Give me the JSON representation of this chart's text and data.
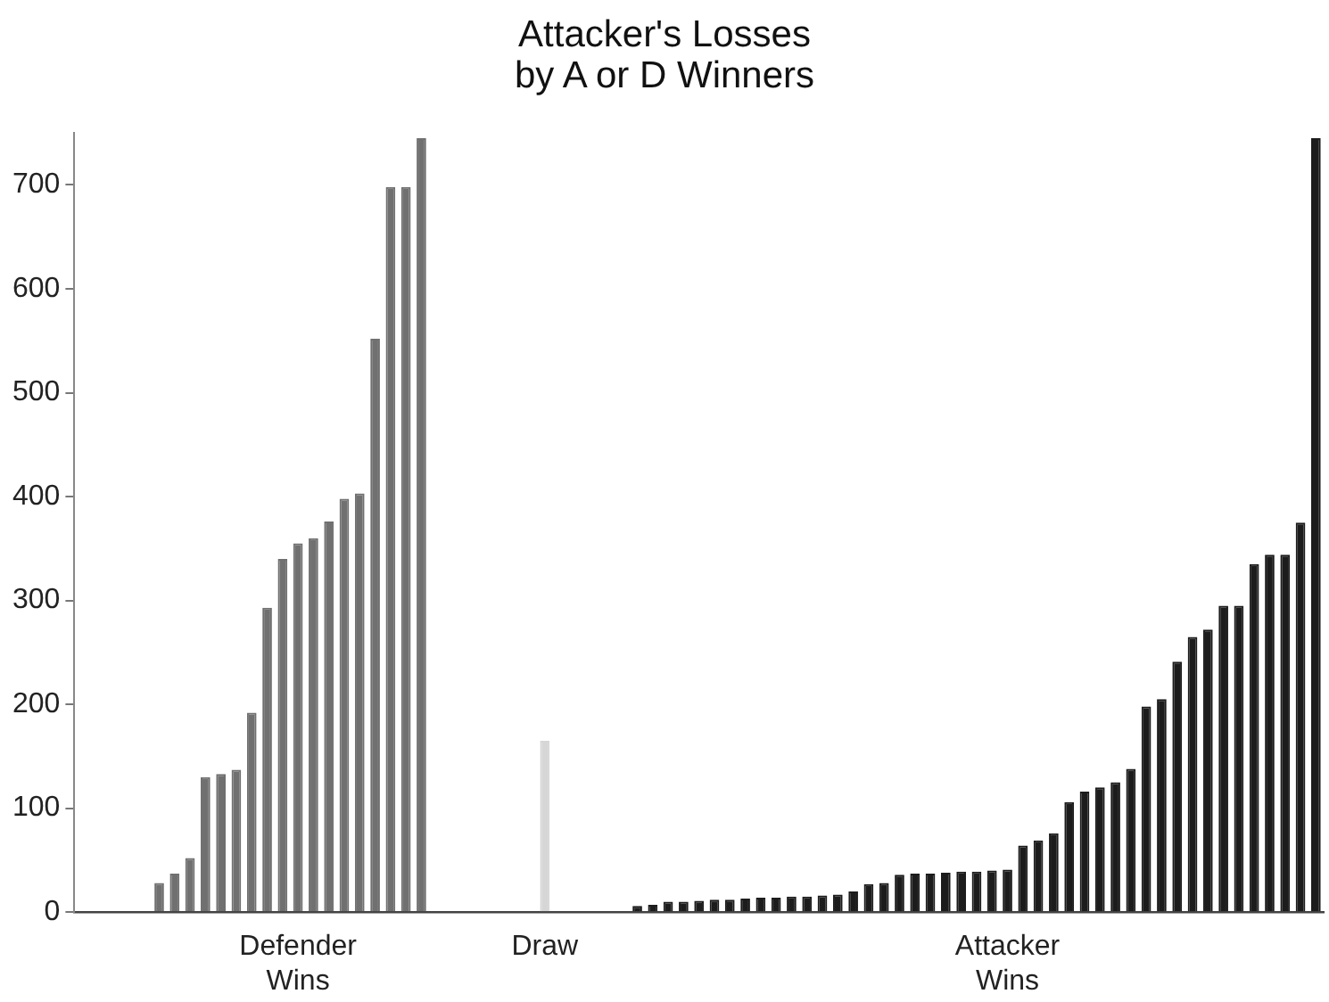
{
  "chart_data": {
    "type": "bar",
    "title": "Attacker's Losses\nby A or D Winners",
    "categories": [
      null,
      null,
      null,
      null,
      null,
      null,
      null,
      null,
      null,
      null,
      null,
      null,
      null,
      null,
      "Defender Wins",
      null,
      null,
      null,
      null,
      null,
      null,
      null,
      null,
      null,
      null,
      null,
      null,
      null,
      null,
      null,
      "Draw",
      null,
      null,
      null,
      null,
      null,
      null,
      null,
      null,
      null,
      null,
      null,
      null,
      null,
      null,
      null,
      null,
      null,
      null,
      null,
      null,
      null,
      null,
      null,
      null,
      null,
      null,
      null,
      null,
      null,
      "Attacker Wins",
      null,
      null,
      null,
      null,
      null,
      null,
      null,
      null,
      null,
      null,
      null,
      null,
      null,
      null,
      null,
      null,
      null,
      null,
      null,
      null
    ],
    "series": [
      {
        "color": "#707070",
        "values": [
          null,
          null,
          null,
          null,
          null,
          28,
          37,
          52,
          130,
          133,
          137,
          192,
          293,
          340,
          355,
          360,
          376,
          398,
          403,
          552,
          698,
          698,
          745,
          null,
          null,
          null,
          null,
          null,
          null,
          null,
          null,
          null,
          null,
          null,
          null,
          null,
          null,
          null,
          null,
          null,
          null,
          null,
          null,
          null,
          null,
          null,
          null,
          null,
          null,
          null,
          null,
          null,
          null,
          null,
          null,
          null,
          null,
          null,
          null,
          null,
          null,
          null,
          null,
          null,
          null,
          null,
          null,
          null,
          null,
          null,
          null,
          null,
          null,
          null,
          null,
          null,
          null,
          null,
          null,
          null,
          null
        ]
      },
      {
        "color": "#d6d6d6",
        "values": [
          null,
          null,
          null,
          null,
          null,
          null,
          null,
          null,
          null,
          null,
          null,
          null,
          null,
          null,
          null,
          null,
          null,
          null,
          null,
          null,
          null,
          null,
          null,
          null,
          null,
          null,
          null,
          null,
          null,
          null,
          165,
          null,
          null,
          null,
          null,
          null,
          null,
          null,
          null,
          null,
          null,
          null,
          null,
          null,
          null,
          null,
          null,
          null,
          null,
          null,
          null,
          null,
          null,
          null,
          null,
          null,
          null,
          null,
          null,
          null,
          null,
          null,
          null,
          null,
          null,
          null,
          null,
          null,
          null,
          null,
          null,
          null,
          null,
          null,
          null,
          null,
          null,
          null,
          null,
          null,
          null
        ]
      },
      {
        "color": "#1c1c1c",
        "values": [
          null,
          null,
          null,
          null,
          null,
          null,
          null,
          null,
          null,
          null,
          null,
          null,
          null,
          null,
          null,
          null,
          null,
          null,
          null,
          null,
          null,
          null,
          null,
          null,
          null,
          null,
          null,
          null,
          null,
          null,
          null,
          null,
          null,
          null,
          null,
          null,
          6,
          7,
          10,
          10,
          11,
          12,
          12,
          13,
          14,
          14,
          15,
          15,
          16,
          17,
          20,
          27,
          28,
          36,
          37,
          37,
          38,
          39,
          39,
          40,
          41,
          64,
          69,
          76,
          106,
          116,
          120,
          125,
          138,
          198,
          205,
          241,
          265,
          272,
          295,
          295,
          335,
          344,
          344,
          375,
          745
        ]
      }
    ],
    "ylim": [
      0,
      750
    ],
    "yticks": [
      0,
      100,
      200,
      300,
      400,
      500,
      600,
      700
    ],
    "grid": false,
    "legend": false
  }
}
